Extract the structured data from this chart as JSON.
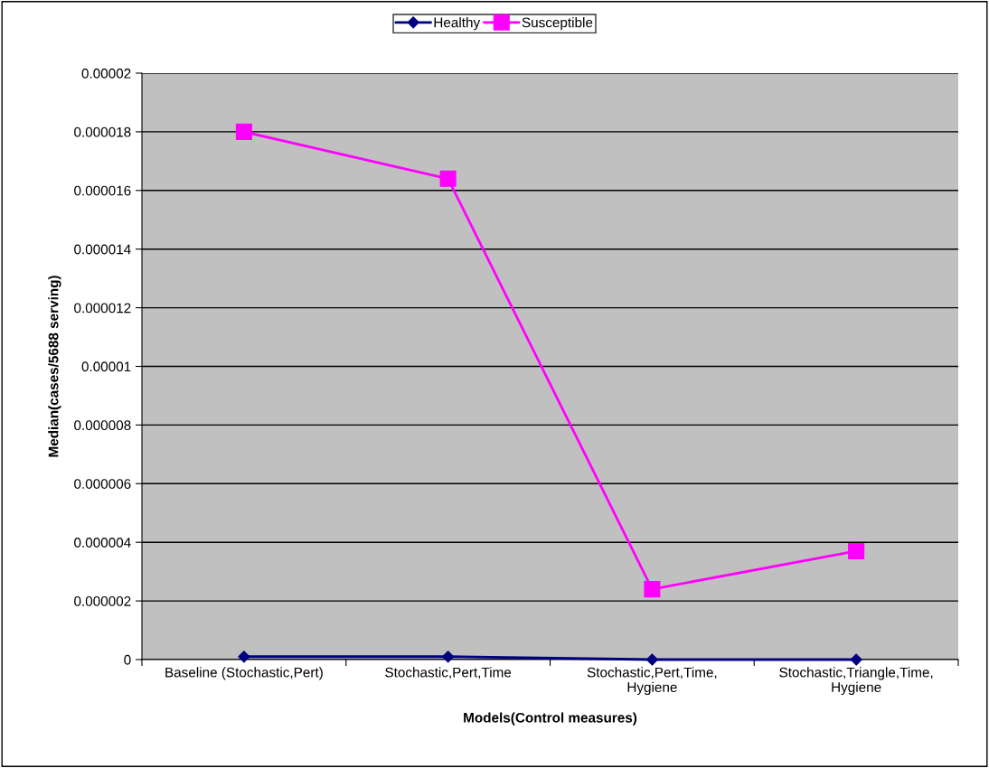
{
  "chart_data": {
    "type": "line",
    "xlabel": "Models(Control measures)",
    "ylabel": "Median(cases/5688 serving)",
    "categories": [
      "Baseline (Stochastic,Pert)",
      "Stochastic,Pert,Time",
      "Stochastic,Pert,Time,\nHygiene",
      "Stochastic,Triangle,Time,\nHygiene"
    ],
    "series": [
      {
        "name": "Healthy",
        "color": "#000080",
        "marker": "diamond",
        "values": [
          1e-07,
          1e-07,
          0,
          0
        ]
      },
      {
        "name": "Susceptible",
        "color": "#ff00ff",
        "marker": "square",
        "values": [
          1.8e-05,
          1.64e-05,
          2.4e-06,
          3.7e-06
        ]
      }
    ],
    "ylim": [
      0,
      2e-05
    ],
    "yticks": [
      {
        "value": 0,
        "label": "0"
      },
      {
        "value": 2e-06,
        "label": "0.000002"
      },
      {
        "value": 4e-06,
        "label": "0.000004"
      },
      {
        "value": 6e-06,
        "label": "0.000006"
      },
      {
        "value": 8e-06,
        "label": "0.000008"
      },
      {
        "value": 1e-05,
        "label": "0.00001"
      },
      {
        "value": 1.2e-05,
        "label": "0.000012"
      },
      {
        "value": 1.4e-05,
        "label": "0.000014"
      },
      {
        "value": 1.6e-05,
        "label": "0.000016"
      },
      {
        "value": 1.8e-05,
        "label": "0.000018"
      },
      {
        "value": 2e-05,
        "label": "0.00002"
      }
    ],
    "grid": "y",
    "legend": "top",
    "line_style": "solid"
  }
}
